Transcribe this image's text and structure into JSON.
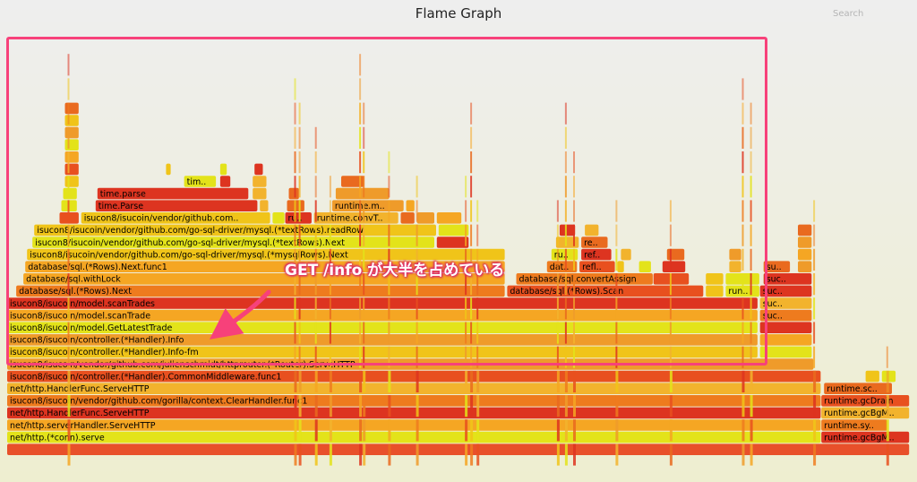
{
  "page": {
    "title": "Flame Graph",
    "search_label": "Search",
    "callout": "GET /info が大半を占めている"
  },
  "colors": {
    "highlight": "#f7417a",
    "frame_palette": [
      "#f5a623",
      "#ee7b1e",
      "#e8501f",
      "#f0c419",
      "#e3e31a",
      "#dd3420",
      "#f2b32d",
      "#e96a1f",
      "#ef9b2a"
    ]
  },
  "chart_data": {
    "type": "flame",
    "unit": "share of total samples",
    "frames": [
      {
        "depth": 0,
        "start": 0.0,
        "width": 1.0,
        "label": ""
      },
      {
        "depth": 1,
        "start": 0.0,
        "width": 0.902,
        "label": "net/http.(*conn).serve"
      },
      {
        "depth": 1,
        "start": 0.902,
        "width": 0.098,
        "label": "runtime.gcBgM.."
      },
      {
        "depth": 2,
        "start": 0.0,
        "width": 0.902,
        "label": "net/http.serverHandler.ServeHTTP"
      },
      {
        "depth": 2,
        "start": 0.902,
        "width": 0.074,
        "label": "runtime.syste.."
      },
      {
        "depth": 3,
        "start": 0.0,
        "width": 0.902,
        "label": "net/http.HandlerFunc.ServeHTTP"
      },
      {
        "depth": 3,
        "start": 0.902,
        "width": 0.098,
        "label": "runtime.gcBgM.."
      },
      {
        "depth": 4,
        "start": 0.0,
        "width": 0.902,
        "label": "isucon8/isucoin/vendor/github.com/gorilla/context.ClearHandler.func1"
      },
      {
        "depth": 4,
        "start": 0.902,
        "width": 0.098,
        "label": "runtime.gcDrain"
      },
      {
        "depth": 5,
        "start": 0.0,
        "width": 0.902,
        "label": "net/http.HandlerFunc.ServeHTTP"
      },
      {
        "depth": 5,
        "start": 0.905,
        "width": 0.076,
        "label": "runtime.sc.."
      },
      {
        "depth": 6,
        "start": 0.0,
        "width": 0.902,
        "label": "isucon8/isucoin/controller.(*Handler).CommonMiddleware.func1"
      },
      {
        "depth": 6,
        "start": 0.951,
        "width": 0.016,
        "label": "r.."
      },
      {
        "depth": 6,
        "start": 0.969,
        "width": 0.016,
        "label": "r.."
      },
      {
        "depth": 7,
        "start": 0.0,
        "width": 0.894,
        "label": "isucon8/isucoin/vendor/github.com/julienschmidt/httprouter.(*Router).ServeHTTP"
      },
      {
        "depth": 8,
        "start": 0.0,
        "width": 0.832,
        "label": "isucon8/isucoin/controller.(*Handler).Info-fm"
      },
      {
        "depth": 8,
        "start": 0.834,
        "width": 0.058,
        "label": ""
      },
      {
        "depth": 9,
        "start": 0.0,
        "width": 0.832,
        "label": "isucon8/isucoin/controller.(*Handler).Info"
      },
      {
        "depth": 9,
        "start": 0.834,
        "width": 0.058,
        "label": ""
      },
      {
        "depth": 10,
        "start": 0.0,
        "width": 0.832,
        "label": "isucon8/isucoin/model.GetLatestTrade"
      },
      {
        "depth": 10,
        "start": 0.834,
        "width": 0.058,
        "label": ""
      },
      {
        "depth": 11,
        "start": 0.0,
        "width": 0.832,
        "label": "isucon8/isucoin/model.scanTrade"
      },
      {
        "depth": 11,
        "start": 0.834,
        "width": 0.058,
        "label": "suc.."
      },
      {
        "depth": 12,
        "start": 0.0,
        "width": 0.832,
        "label": "isucon8/isucoin/model.scanTrades"
      },
      {
        "depth": 12,
        "start": 0.834,
        "width": 0.058,
        "label": "suc.."
      },
      {
        "depth": 13,
        "start": 0.01,
        "width": 0.542,
        "label": "database/sql.(*Rows).Next"
      },
      {
        "depth": 13,
        "start": 0.554,
        "width": 0.218,
        "label": "database/sql.(*Rows).Scan"
      },
      {
        "depth": 13,
        "start": 0.774,
        "width": 0.02,
        "label": "r.."
      },
      {
        "depth": 13,
        "start": 0.796,
        "width": 0.038,
        "label": "runt.."
      },
      {
        "depth": 13,
        "start": 0.834,
        "width": 0.058,
        "label": "suc.."
      },
      {
        "depth": 14,
        "start": 0.018,
        "width": 0.534,
        "label": "database/sql.withLock"
      },
      {
        "depth": 14,
        "start": 0.564,
        "width": 0.152,
        "label": "database/sql.convertAssign"
      },
      {
        "depth": 14,
        "start": 0.716,
        "width": 0.04,
        "label": ""
      },
      {
        "depth": 14,
        "start": 0.774,
        "width": 0.02,
        "label": ""
      },
      {
        "depth": 14,
        "start": 0.796,
        "width": 0.038,
        "label": ""
      },
      {
        "depth": 14,
        "start": 0.838,
        "width": 0.054,
        "label": "suc.."
      },
      {
        "depth": 15,
        "start": 0.02,
        "width": 0.532,
        "label": "database/sql.(*Rows).Next.func1"
      },
      {
        "depth": 15,
        "start": 0.598,
        "width": 0.034,
        "label": "data.."
      },
      {
        "depth": 15,
        "start": 0.634,
        "width": 0.04,
        "label": "reflec.."
      },
      {
        "depth": 15,
        "start": 0.676,
        "width": 0.008,
        "label": ""
      },
      {
        "depth": 15,
        "start": 0.7,
        "width": 0.014,
        "label": ""
      },
      {
        "depth": 15,
        "start": 0.726,
        "width": 0.026,
        "label": ""
      },
      {
        "depth": 15,
        "start": 0.8,
        "width": 0.014,
        "label": ""
      },
      {
        "depth": 15,
        "start": 0.838,
        "width": 0.03,
        "label": "suc.."
      },
      {
        "depth": 15,
        "start": 0.876,
        "width": 0.016,
        "label": ""
      },
      {
        "depth": 16,
        "start": 0.022,
        "width": 0.53,
        "label": "isucon8/isucoin/vendor/github.com/go-sql-driver/mysql.(*mysqlRows).Next"
      },
      {
        "depth": 16,
        "start": 0.603,
        "width": 0.03,
        "label": "run.."
      },
      {
        "depth": 16,
        "start": 0.636,
        "width": 0.034,
        "label": "refle.."
      },
      {
        "depth": 16,
        "start": 0.68,
        "width": 0.012,
        "label": ""
      },
      {
        "depth": 16,
        "start": 0.731,
        "width": 0.02,
        "label": "st.."
      },
      {
        "depth": 16,
        "start": 0.8,
        "width": 0.014,
        "label": ""
      },
      {
        "depth": 16,
        "start": 0.876,
        "width": 0.016,
        "label": ""
      },
      {
        "depth": 17,
        "start": 0.028,
        "width": 0.446,
        "label": "isucon8/isucoin/vendor/github.com/go-sql-driver/mysql.(*textRows).Next"
      },
      {
        "depth": 17,
        "start": 0.476,
        "width": 0.036,
        "label": ""
      },
      {
        "depth": 17,
        "start": 0.608,
        "width": 0.026,
        "label": ""
      },
      {
        "depth": 17,
        "start": 0.636,
        "width": 0.03,
        "label": "refl.."
      },
      {
        "depth": 17,
        "start": 0.876,
        "width": 0.016,
        "label": ""
      },
      {
        "depth": 18,
        "start": 0.03,
        "width": 0.446,
        "label": "isucon8/isucoin/vendor/github.com/go-sql-driver/mysql.(*textRows).readRow"
      },
      {
        "depth": 18,
        "start": 0.478,
        "width": 0.034,
        "label": ""
      },
      {
        "depth": 18,
        "start": 0.612,
        "width": 0.018,
        "label": ""
      },
      {
        "depth": 18,
        "start": 0.64,
        "width": 0.016,
        "label": ""
      },
      {
        "depth": 18,
        "start": 0.876,
        "width": 0.016,
        "label": ""
      },
      {
        "depth": 19,
        "start": 0.058,
        "width": 0.022,
        "label": "is.."
      },
      {
        "depth": 19,
        "start": 0.082,
        "width": 0.21,
        "label": "isucon8/isucoin/vendor/github.com.."
      },
      {
        "depth": 19,
        "start": 0.294,
        "width": 0.014,
        "label": ""
      },
      {
        "depth": 19,
        "start": 0.308,
        "width": 0.03,
        "label": "run.."
      },
      {
        "depth": 19,
        "start": 0.34,
        "width": 0.094,
        "label": "runtime.convT2E.."
      },
      {
        "depth": 19,
        "start": 0.436,
        "width": 0.016,
        "label": ""
      },
      {
        "depth": 19,
        "start": 0.454,
        "width": 0.02,
        "label": "r.."
      },
      {
        "depth": 19,
        "start": 0.476,
        "width": 0.028,
        "label": ""
      },
      {
        "depth": 20,
        "start": 0.06,
        "width": 0.018,
        "label": "i.."
      },
      {
        "depth": 20,
        "start": 0.098,
        "width": 0.18,
        "label": "time.Parse"
      },
      {
        "depth": 20,
        "start": 0.28,
        "width": 0.01,
        "label": ""
      },
      {
        "depth": 20,
        "start": 0.31,
        "width": 0.02,
        "label": ""
      },
      {
        "depth": 20,
        "start": 0.36,
        "width": 0.08,
        "label": "runtime.m.."
      },
      {
        "depth": 20,
        "start": 0.442,
        "width": 0.01,
        "label": ""
      },
      {
        "depth": 21,
        "start": 0.062,
        "width": 0.016,
        "label": "r.."
      },
      {
        "depth": 21,
        "start": 0.1,
        "width": 0.168,
        "label": "time.parse"
      },
      {
        "depth": 21,
        "start": 0.272,
        "width": 0.016,
        "label": ""
      },
      {
        "depth": 21,
        "start": 0.312,
        "width": 0.012,
        "label": ""
      },
      {
        "depth": 21,
        "start": 0.364,
        "width": 0.06,
        "label": ""
      },
      {
        "depth": 22,
        "start": 0.064,
        "width": 0.016,
        "label": "r.."
      },
      {
        "depth": 22,
        "start": 0.196,
        "width": 0.036,
        "label": "tim.."
      },
      {
        "depth": 22,
        "start": 0.236,
        "width": 0.012,
        "label": ""
      },
      {
        "depth": 22,
        "start": 0.272,
        "width": 0.016,
        "label": ""
      },
      {
        "depth": 22,
        "start": 0.37,
        "width": 0.026,
        "label": ""
      },
      {
        "depth": 23,
        "start": 0.064,
        "width": 0.016,
        "label": "n.."
      },
      {
        "depth": 23,
        "start": 0.176,
        "width": 0.006,
        "label": ""
      },
      {
        "depth": 23,
        "start": 0.236,
        "width": 0.008,
        "label": ""
      },
      {
        "depth": 23,
        "start": 0.274,
        "width": 0.01,
        "label": ""
      },
      {
        "depth": 24,
        "start": 0.064,
        "width": 0.016,
        "label": "r.."
      },
      {
        "depth": 25,
        "start": 0.064,
        "width": 0.016,
        "label": "s.."
      },
      {
        "depth": 26,
        "start": 0.064,
        "width": 0.016,
        "label": "s.."
      },
      {
        "depth": 27,
        "start": 0.064,
        "width": 0.016,
        "label": "s.."
      },
      {
        "depth": 28,
        "start": 0.064,
        "width": 0.016,
        "label": "s.."
      }
    ],
    "spikes": [
      {
        "x": 0.067,
        "depth": 33
      },
      {
        "x": 0.318,
        "depth": 31
      },
      {
        "x": 0.323,
        "depth": 29
      },
      {
        "x": 0.341,
        "depth": 27
      },
      {
        "x": 0.357,
        "depth": 24
      },
      {
        "x": 0.39,
        "depth": 34
      },
      {
        "x": 0.394,
        "depth": 30
      },
      {
        "x": 0.422,
        "depth": 25
      },
      {
        "x": 0.453,
        "depth": 24
      },
      {
        "x": 0.507,
        "depth": 24
      },
      {
        "x": 0.513,
        "depth": 30
      },
      {
        "x": 0.52,
        "depth": 21
      },
      {
        "x": 0.609,
        "depth": 21
      },
      {
        "x": 0.618,
        "depth": 29
      },
      {
        "x": 0.627,
        "depth": 25
      },
      {
        "x": 0.674,
        "depth": 22
      },
      {
        "x": 0.734,
        "depth": 22
      },
      {
        "x": 0.814,
        "depth": 32
      },
      {
        "x": 0.823,
        "depth": 29
      },
      {
        "x": 0.893,
        "depth": 22
      },
      {
        "x": 0.974,
        "depth": 10
      }
    ]
  }
}
